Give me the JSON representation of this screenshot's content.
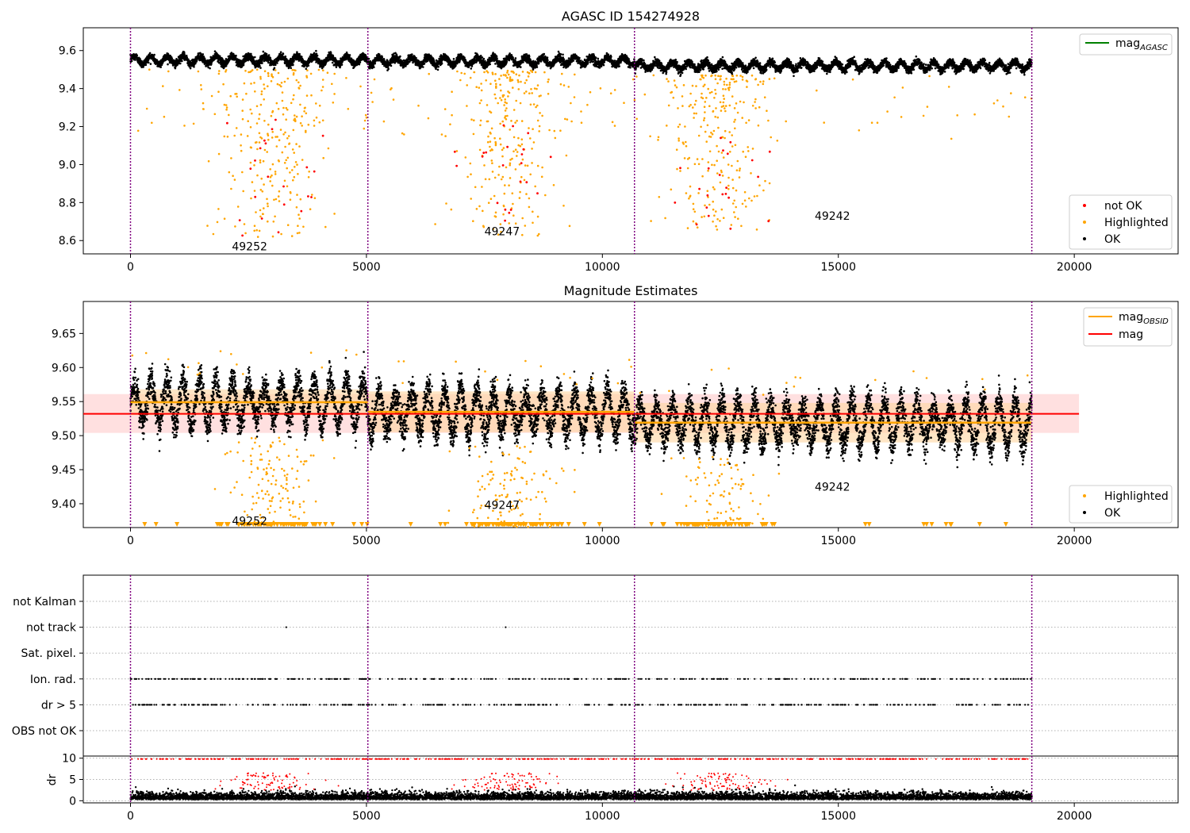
{
  "figure": {
    "title": "AGASC ID 154274928",
    "colors": {
      "ok": "#000000",
      "highlighted": "#ffa500",
      "not_ok": "#ff0000",
      "agasc": "#008000",
      "obsid_line": "#ffa500",
      "mag_line": "#ff0000",
      "band_red": "#ffcccc",
      "band_orange": "#ffd6a0",
      "obs_boundary": "#800080",
      "dr_flag": "#ff0000"
    }
  },
  "chart_data": [
    {
      "type": "scatter",
      "title": "AGASC ID 154274928",
      "xlim": [
        -1000,
        22200
      ],
      "ylim": [
        8.53,
        9.72
      ],
      "xticks": [
        0,
        5000,
        10000,
        15000,
        20000
      ],
      "yticks": [
        8.6,
        8.8,
        9.0,
        9.2,
        9.4,
        9.6
      ],
      "obs_boundaries": [
        0,
        5030,
        10680,
        19100
      ],
      "segments": [
        {
          "obsid": "49252",
          "x0": 0,
          "x1": 5030,
          "mag": 9.55,
          "dip_center": 3000,
          "dip_min": 8.62
        },
        {
          "obsid": "49247",
          "x0": 5030,
          "x1": 10680,
          "mag": 9.545,
          "dip_center": 8000,
          "dip_min": 8.63
        },
        {
          "obsid": "49242",
          "x0": 10680,
          "x1": 19100,
          "mag": 9.52,
          "dip_center": 12500,
          "dip_min": 8.66
        }
      ],
      "annotations": [
        {
          "text": "49252",
          "x": 2150,
          "y": 8.57
        },
        {
          "text": "49247",
          "x": 7500,
          "y": 8.65
        },
        {
          "text": "49242",
          "x": 14500,
          "y": 8.73
        }
      ],
      "legend_top": {
        "position": "top-right",
        "entries": [
          {
            "label": "mag",
            "sub": "AGASC"
          }
        ]
      },
      "legend_bottom": {
        "position": "bottom-right",
        "entries": [
          "not OK",
          "Highlighted",
          "OK"
        ]
      }
    },
    {
      "type": "scatter",
      "title": "Magnitude Estimates",
      "xlim": [
        -1000,
        22200
      ],
      "ylim": [
        9.365,
        9.697
      ],
      "xticks": [
        0,
        5000,
        10000,
        15000,
        20000
      ],
      "yticks": [
        9.4,
        9.45,
        9.5,
        9.55,
        9.6,
        9.65
      ],
      "obs_boundaries": [
        0,
        5030,
        10680,
        19100
      ],
      "mag": 9.532,
      "mag_band": [
        9.504,
        9.561
      ],
      "band_xlim": [
        -1000,
        20100
      ],
      "obsid_mags": [
        {
          "x0": 0,
          "x1": 5030,
          "mag": 9.549,
          "band": [
            9.53,
            9.568
          ]
        },
        {
          "x0": 5030,
          "x1": 10680,
          "mag": 9.535,
          "band": [
            9.505,
            9.565
          ]
        },
        {
          "x0": 10680,
          "x1": 19100,
          "mag": 9.519,
          "band": [
            9.49,
            9.548
          ]
        }
      ],
      "annotations": [
        {
          "text": "49252",
          "x": 2150,
          "y": 9.375
        },
        {
          "text": "49247",
          "x": 7500,
          "y": 9.398
        },
        {
          "text": "49242",
          "x": 14500,
          "y": 9.425
        }
      ],
      "legend_top": {
        "position": "top-right",
        "entries": [
          {
            "label": "mag",
            "sub": "OBSID"
          },
          {
            "label": "mag",
            "sub": ""
          }
        ]
      },
      "legend_bottom": {
        "position": "bottom-right",
        "entries": [
          "Highlighted",
          "OK"
        ]
      }
    },
    {
      "type": "scatter",
      "title": "",
      "xlim": [
        -1000,
        22200
      ],
      "categories": [
        "not Kalman",
        "not track",
        "Sat. pixel.",
        "Ion. rad.",
        "dr > 5",
        "OBS not OK"
      ],
      "obs_boundaries": [
        0,
        5030,
        10680,
        19100
      ]
    },
    {
      "type": "scatter",
      "title": "",
      "xlim": [
        -1000,
        22200
      ],
      "ylim": [
        -0.5,
        10.5
      ],
      "yticks": [
        0,
        5,
        10
      ],
      "ylabel": "dr",
      "xticks": [
        0,
        5000,
        10000,
        15000,
        20000
      ],
      "obs_boundaries": [
        0,
        5030,
        10680,
        19100
      ]
    }
  ]
}
